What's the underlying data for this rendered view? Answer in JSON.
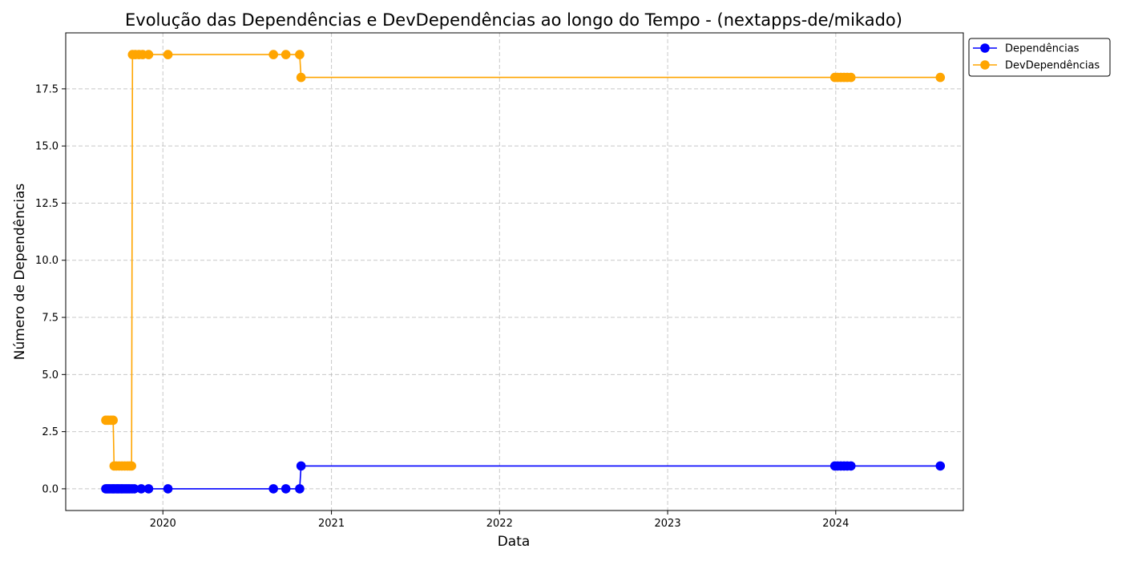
{
  "chart_data": {
    "type": "line",
    "title": "Evolução das Dependências e DevDependências ao longo do Tempo - (nextapps-de/mikado)",
    "xlabel": "Data",
    "ylabel": "Número de Dependências",
    "grid": true,
    "legend_position": "top-right (outside)",
    "xlim": [
      "2019-06-04",
      "2024-10-04"
    ],
    "ylim": [
      -0.95,
      19.95
    ],
    "x_ticks": [
      {
        "value": "2020-01-01",
        "label": "2020"
      },
      {
        "value": "2021-01-01",
        "label": "2021"
      },
      {
        "value": "2022-01-01",
        "label": "2022"
      },
      {
        "value": "2023-01-01",
        "label": "2023"
      },
      {
        "value": "2024-01-01",
        "label": "2024"
      }
    ],
    "y_ticks": [
      {
        "value": 0,
        "label": "0.0"
      },
      {
        "value": 2.5,
        "label": "2.5"
      },
      {
        "value": 5,
        "label": "5.0"
      },
      {
        "value": 7.5,
        "label": "7.5"
      },
      {
        "value": 10,
        "label": "10.0"
      },
      {
        "value": 12.5,
        "label": "12.5"
      },
      {
        "value": 15,
        "label": "15.0"
      },
      {
        "value": 17.5,
        "label": "17.5"
      }
    ],
    "series": [
      {
        "name": "Dependências",
        "color": "#0000ff",
        "marker": "circle",
        "points": [
          [
            "2019-08-30",
            0
          ],
          [
            "2019-09-02",
            0
          ],
          [
            "2019-09-05",
            0
          ],
          [
            "2019-09-08",
            0
          ],
          [
            "2019-09-12",
            0
          ],
          [
            "2019-09-15",
            0
          ],
          [
            "2019-09-18",
            0
          ],
          [
            "2019-09-22",
            0
          ],
          [
            "2019-09-25",
            0
          ],
          [
            "2019-09-28",
            0
          ],
          [
            "2019-10-02",
            0
          ],
          [
            "2019-10-05",
            0
          ],
          [
            "2019-10-09",
            0
          ],
          [
            "2019-10-13",
            0
          ],
          [
            "2019-10-17",
            0
          ],
          [
            "2019-10-21",
            0
          ],
          [
            "2019-10-26",
            0
          ],
          [
            "2019-10-31",
            0
          ],
          [
            "2019-11-15",
            0
          ],
          [
            "2019-12-01",
            0
          ],
          [
            "2020-01-12",
            0
          ],
          [
            "2020-08-28",
            0
          ],
          [
            "2020-09-24",
            0
          ],
          [
            "2020-10-24",
            0
          ],
          [
            "2020-10-27",
            1
          ],
          [
            "2023-12-30",
            1
          ],
          [
            "2024-01-05",
            1
          ],
          [
            "2024-01-12",
            1
          ],
          [
            "2024-01-19",
            1
          ],
          [
            "2024-01-26",
            1
          ],
          [
            "2024-02-03",
            1
          ],
          [
            "2024-08-15",
            1
          ]
        ]
      },
      {
        "name": "DevDependências",
        "color": "#ffa500",
        "marker": "circle",
        "points": [
          [
            "2019-08-30",
            3
          ],
          [
            "2019-09-04",
            3
          ],
          [
            "2019-09-10",
            3
          ],
          [
            "2019-09-15",
            3
          ],
          [
            "2019-09-17",
            1
          ],
          [
            "2019-09-22",
            1
          ],
          [
            "2019-09-28",
            1
          ],
          [
            "2019-10-04",
            1
          ],
          [
            "2019-10-10",
            1
          ],
          [
            "2019-10-16",
            1
          ],
          [
            "2019-10-21",
            1
          ],
          [
            "2019-10-25",
            1
          ],
          [
            "2019-10-27",
            19
          ],
          [
            "2019-11-02",
            19
          ],
          [
            "2019-11-10",
            19
          ],
          [
            "2019-11-18",
            19
          ],
          [
            "2019-12-01",
            19
          ],
          [
            "2020-01-12",
            19
          ],
          [
            "2020-08-28",
            19
          ],
          [
            "2020-09-24",
            19
          ],
          [
            "2020-10-24",
            19
          ],
          [
            "2020-10-27",
            18
          ],
          [
            "2023-12-30",
            18
          ],
          [
            "2024-01-05",
            18
          ],
          [
            "2024-01-12",
            18
          ],
          [
            "2024-01-19",
            18
          ],
          [
            "2024-01-26",
            18
          ],
          [
            "2024-02-03",
            18
          ],
          [
            "2024-08-15",
            18
          ]
        ]
      }
    ]
  }
}
